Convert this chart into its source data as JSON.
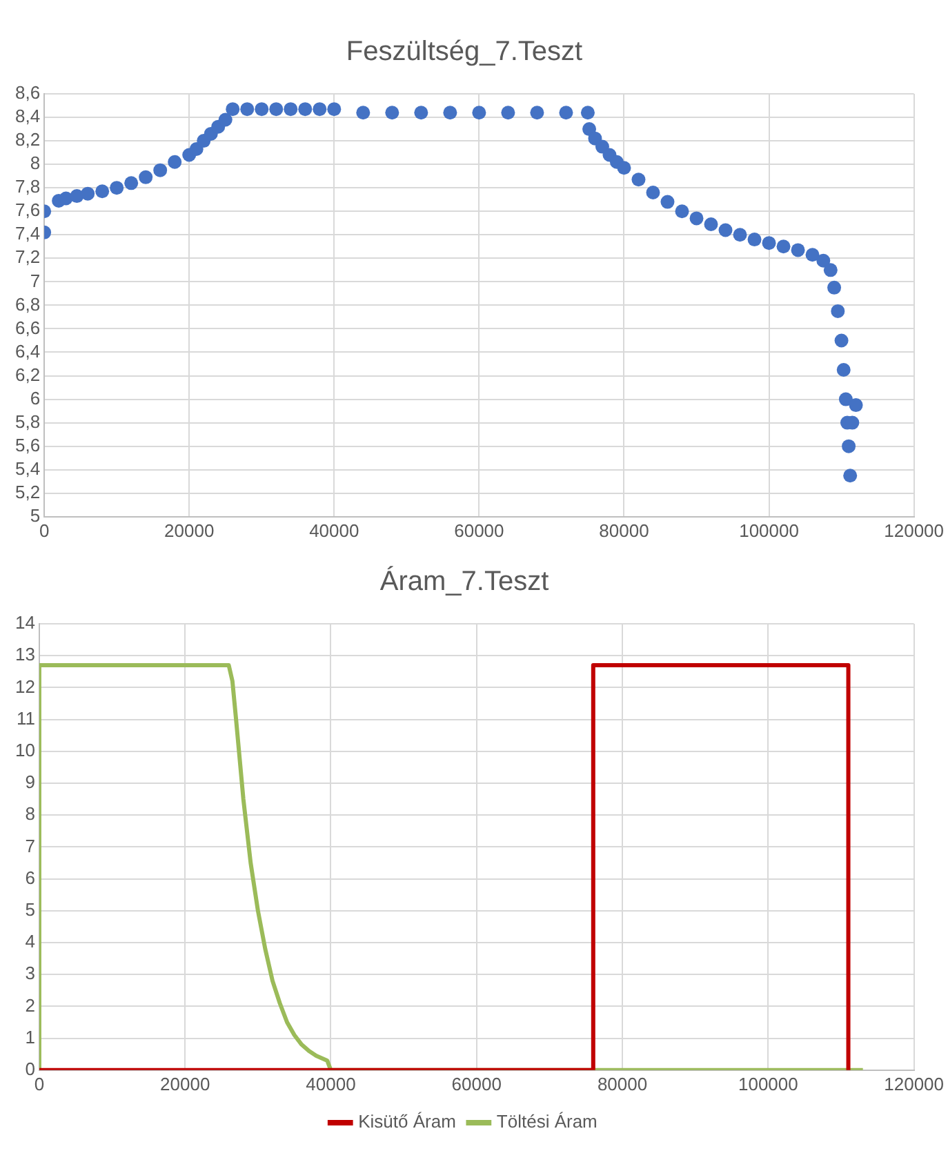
{
  "chart_data": [
    {
      "type": "scatter",
      "title": "Feszültség_7.Teszt",
      "marker": "circle",
      "grid": true,
      "legend": false,
      "series": [
        {
          "color": "#4472c4",
          "x": [
            0,
            0,
            2000,
            3000,
            4500,
            6000,
            8000,
            10000,
            12000,
            14000,
            16000,
            18000,
            20000,
            21000,
            22000,
            23000,
            24000,
            25000,
            26000,
            28000,
            30000,
            32000,
            34000,
            36000,
            38000,
            40000,
            44000,
            48000,
            52000,
            56000,
            60000,
            64000,
            68000,
            72000,
            75000,
            75200,
            76000,
            77000,
            78000,
            79000,
            80000,
            82000,
            84000,
            86000,
            88000,
            90000,
            92000,
            94000,
            96000,
            98000,
            100000,
            102000,
            104000,
            106000,
            107500,
            108500,
            109000,
            109500,
            110000,
            110300,
            110600,
            110800,
            111000,
            111200,
            111500,
            112000
          ],
          "values": [
            7.42,
            7.6,
            7.69,
            7.71,
            7.73,
            7.75,
            7.77,
            7.8,
            7.84,
            7.89,
            7.95,
            8.02,
            8.08,
            8.13,
            8.2,
            8.26,
            8.32,
            8.38,
            8.47,
            8.47,
            8.47,
            8.47,
            8.47,
            8.47,
            8.47,
            8.47,
            8.44,
            8.44,
            8.44,
            8.44,
            8.44,
            8.44,
            8.44,
            8.44,
            8.44,
            8.3,
            8.22,
            8.15,
            8.08,
            8.02,
            7.97,
            7.87,
            7.76,
            7.68,
            7.6,
            7.54,
            7.49,
            7.44,
            7.4,
            7.36,
            7.33,
            7.3,
            7.27,
            7.23,
            7.18,
            7.1,
            6.95,
            6.75,
            6.5,
            6.25,
            6.0,
            5.8,
            5.6,
            5.35,
            5.8,
            5.95
          ]
        }
      ],
      "xlim": [
        0,
        120000
      ],
      "xticks": [
        0,
        20000,
        40000,
        60000,
        80000,
        100000,
        120000
      ],
      "ylim": [
        5,
        8.6
      ],
      "yticks": [
        5,
        {
          "value": 5.2,
          "label": "5,2"
        },
        {
          "value": 5.4,
          "label": "5,4"
        },
        {
          "value": 5.6,
          "label": "5,6"
        },
        {
          "value": 5.8,
          "label": "5,8"
        },
        6,
        {
          "value": 6.2,
          "label": "6,2"
        },
        {
          "value": 6.4,
          "label": "6,4"
        },
        {
          "value": 6.6,
          "label": "6,6"
        },
        {
          "value": 6.8,
          "label": "6,8"
        },
        7,
        {
          "value": 7.2,
          "label": "7,2"
        },
        {
          "value": 7.4,
          "label": "7,4"
        },
        {
          "value": 7.6,
          "label": "7,6"
        },
        {
          "value": 7.8,
          "label": "7,8"
        },
        8,
        {
          "value": 8.2,
          "label": "8,2"
        },
        {
          "value": 8.4,
          "label": "8,4"
        },
        {
          "value": 8.6,
          "label": "8,6"
        }
      ]
    },
    {
      "type": "line",
      "title": "Áram_7.Teszt",
      "marker": "none",
      "line_style": "solid",
      "grid": true,
      "legend": "bottom",
      "series": [
        {
          "name": "Kisütő Áram",
          "color": "#c00000",
          "x": [
            0,
            40000,
            76000,
            76000,
            111000,
            111000
          ],
          "values": [
            0,
            0,
            0,
            12.7,
            12.7,
            0
          ]
        },
        {
          "name": "Töltési Áram",
          "color": "#9bbb59",
          "x": [
            0,
            0,
            26000,
            26500,
            27000,
            28000,
            29000,
            30000,
            31000,
            32000,
            33000,
            34000,
            35000,
            36000,
            37000,
            38000,
            39500,
            40000,
            113000
          ],
          "values": [
            0,
            12.7,
            12.7,
            12.2,
            11,
            8.5,
            6.5,
            5,
            3.8,
            2.8,
            2.1,
            1.5,
            1.1,
            0.8,
            0.6,
            0.45,
            0.3,
            0,
            0
          ]
        }
      ],
      "xlim": [
        0,
        120000
      ],
      "xticks": [
        0,
        20000,
        40000,
        60000,
        80000,
        100000,
        120000
      ],
      "ylim": [
        0,
        14
      ],
      "yticks": [
        0,
        1,
        2,
        3,
        4,
        5,
        6,
        7,
        8,
        9,
        10,
        11,
        12,
        13,
        14
      ]
    }
  ]
}
